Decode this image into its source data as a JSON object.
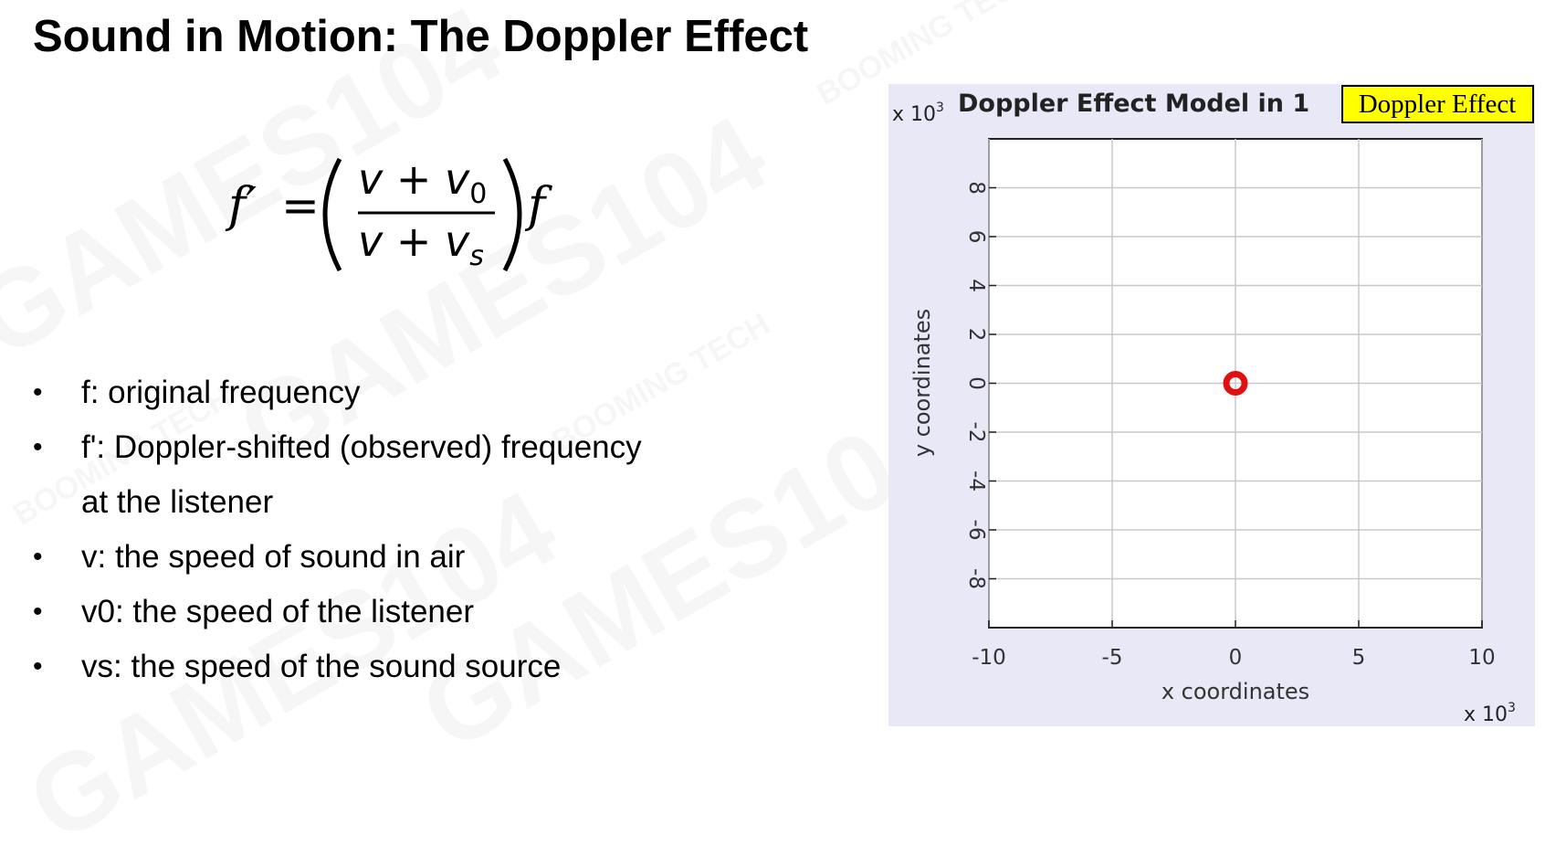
{
  "slide": {
    "title": "Sound in Motion: The Doppler Effect",
    "formula": {
      "lhs": "f′",
      "equals": "=",
      "numerator": "v + v",
      "numerator_sub": "0",
      "denominator": "v + v",
      "denominator_sub": "s",
      "trailing": "f"
    },
    "bullets": [
      {
        "line1": "f: original frequency",
        "line2": ""
      },
      {
        "line1": "f': Doppler-shifted (observed) frequency",
        "line2": "at the listener"
      },
      {
        "line1": "v: the speed of sound in air",
        "line2": ""
      },
      {
        "line1": "v0:  the speed of the listener",
        "line2": ""
      },
      {
        "line1": "vs: the speed of the sound source",
        "line2": ""
      }
    ],
    "bullet_glyph": "•"
  },
  "watermark": {
    "texts": [
      "GAMES104",
      "BOOMING TECH"
    ]
  },
  "chart_data": {
    "type": "scatter",
    "title": "Doppler Effect Model in 1",
    "title_tag": "Doppler Effect",
    "xlabel": "x coordinates",
    "ylabel": "y coordinates",
    "x_multiplier": "x 10",
    "y_multiplier": "x 10",
    "multiplier_exp": "3",
    "xlim": [
      -10,
      10
    ],
    "ylim": [
      -10,
      10
    ],
    "x_ticks": [
      -10,
      -5,
      0,
      5,
      10
    ],
    "y_ticks": [
      -8,
      -6,
      -4,
      -2,
      0,
      2,
      4,
      6,
      8
    ],
    "grid": true,
    "points": [
      {
        "x": 0,
        "y": 0
      }
    ],
    "colors": {
      "point": "#e01010",
      "tag_bg": "#ffff00",
      "figure_bg": "#e8e8f6"
    }
  }
}
